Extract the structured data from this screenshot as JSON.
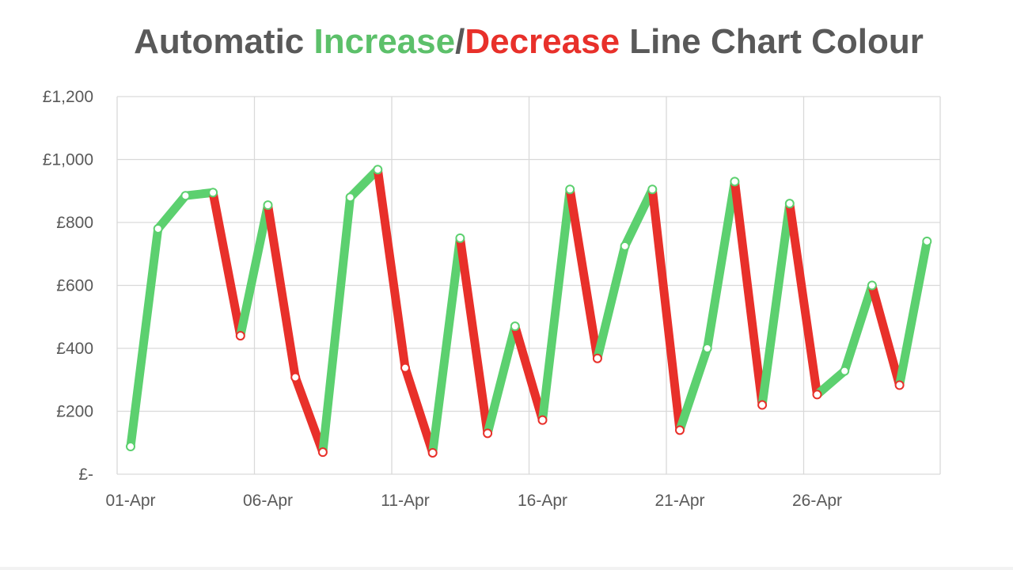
{
  "title": {
    "part1": "Automatic ",
    "part2": "Increase",
    "part3": "/",
    "part4": "Decrease",
    "part5": " Line Chart Colour"
  },
  "colors": {
    "title_text": "#595959",
    "increase": "#5cd06f",
    "decrease": "#e8302a",
    "gridline": "#d9d9d9",
    "axis_text": "#595959"
  },
  "chart_data": {
    "type": "line",
    "title": "Automatic Increase/Decrease Line Chart Colour",
    "xlabel": "",
    "ylabel": "",
    "x": [
      "01-Apr",
      "02-Apr",
      "03-Apr",
      "04-Apr",
      "05-Apr",
      "06-Apr",
      "07-Apr",
      "08-Apr",
      "09-Apr",
      "10-Apr",
      "11-Apr",
      "12-Apr",
      "13-Apr",
      "14-Apr",
      "15-Apr",
      "16-Apr",
      "17-Apr",
      "18-Apr",
      "19-Apr",
      "20-Apr",
      "21-Apr",
      "22-Apr",
      "23-Apr",
      "24-Apr",
      "25-Apr",
      "26-Apr",
      "27-Apr",
      "28-Apr",
      "29-Apr",
      "30-Apr"
    ],
    "x_tick_labels": [
      "01-Apr",
      "06-Apr",
      "11-Apr",
      "16-Apr",
      "21-Apr",
      "26-Apr"
    ],
    "y_tick_labels": [
      "£-",
      "£200",
      "£400",
      "£600",
      "£800",
      "£1,000",
      "£1,200"
    ],
    "ylim": [
      0,
      1200
    ],
    "y_step": 200,
    "grid": true,
    "series": [
      {
        "values": [
          88,
          780,
          885,
          895,
          440,
          855,
          308,
          70,
          880,
          968,
          338,
          68,
          750,
          130,
          470,
          172,
          905,
          368,
          725,
          905,
          140,
          400,
          930,
          220,
          860,
          253,
          328,
          600,
          283,
          740
        ]
      }
    ],
    "encoding": "segments colored green when value increases, red when value decreases"
  }
}
